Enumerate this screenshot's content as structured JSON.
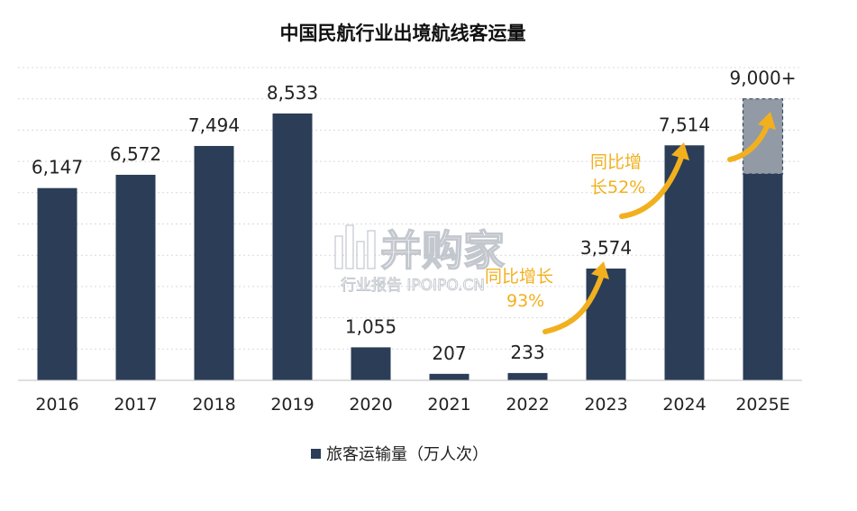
{
  "colors": {
    "bar": "#2b3d57",
    "bar_estimate": "#929aa6",
    "arrow": "#f2b01e",
    "grid": "#d9d9d9"
  },
  "chart_data": {
    "type": "bar",
    "title": "中国民航行业出境航线客运量",
    "categories": [
      "2016",
      "2017",
      "2018",
      "2019",
      "2020",
      "2021",
      "2022",
      "2023",
      "2024",
      "2025E"
    ],
    "series": [
      {
        "name": "旅客运输量（万人次）",
        "values": [
          6147,
          6572,
          7494,
          8533,
          1055,
          207,
          233,
          3574,
          7514,
          9000
        ]
      }
    ],
    "data_labels": [
      "6,147",
      "6,572",
      "7,494",
      "8,533",
      "1,055",
      "207",
      "233",
      "3,574",
      "7,514",
      "9,000+"
    ],
    "estimate": {
      "category": "2025E",
      "base_value": 6600,
      "dashed_outline": true
    },
    "ylim": [
      0,
      10000
    ],
    "grid": true,
    "legend": {
      "position": "bottom",
      "label": "旅客运输量（万人次）"
    },
    "annotations": [
      {
        "lines": [
          "同比增长",
          "93%"
        ],
        "arrow_color": "#f2b01e"
      },
      {
        "lines": [
          "同比增",
          "长52%"
        ],
        "arrow_color": "#f2b01e"
      }
    ]
  },
  "watermark": {
    "main": "并购家",
    "sub": "行业报告 IPOIPO.CN"
  }
}
